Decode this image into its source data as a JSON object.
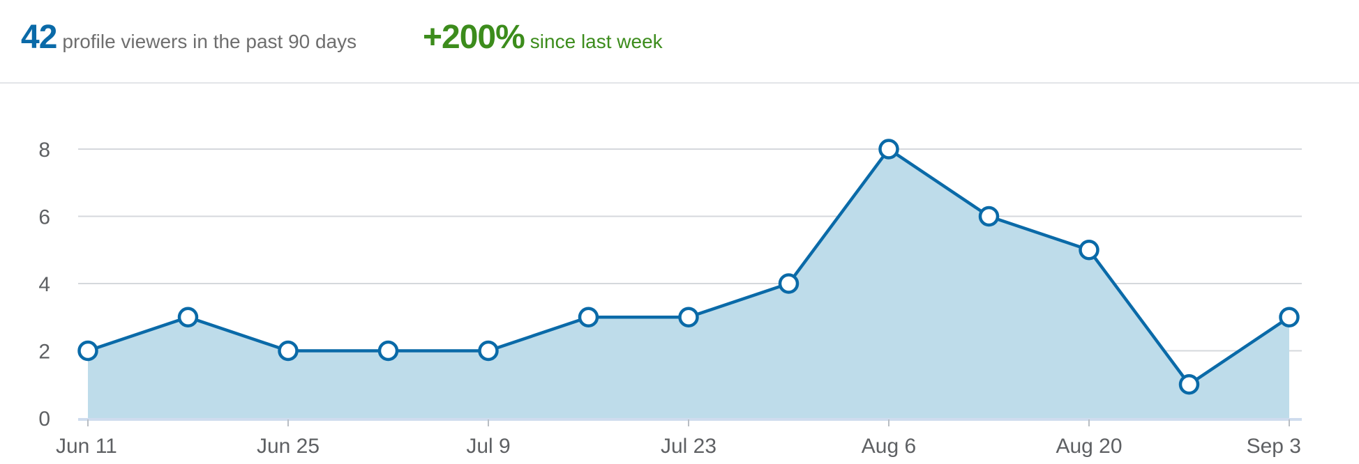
{
  "header": {
    "viewers_count": "42",
    "viewers_label": "profile viewers in the past 90 days",
    "change_value": "+200%",
    "change_label": "since last week"
  },
  "colors": {
    "accent": "#0a6aa8",
    "area_fill": "#bedcea",
    "positive": "#3c8c1c",
    "grid": "#d5d8dc",
    "tick_text": "#5e6063"
  },
  "chart_data": {
    "type": "area",
    "x": [
      "Jun 11",
      "Jun 18",
      "Jun 25",
      "Jul 2",
      "Jul 9",
      "Jul 16",
      "Jul 23",
      "Jul 30",
      "Aug 6",
      "Aug 13",
      "Aug 20",
      "Aug 27",
      "Sep 3"
    ],
    "values": [
      2,
      3,
      2,
      2,
      2,
      3,
      3,
      4,
      8,
      6,
      5,
      1,
      3
    ],
    "x_ticks": [
      "Jun 11",
      "Jun 25",
      "Jul 9",
      "Jul 23",
      "Aug 6",
      "Aug 20",
      "Sep 3"
    ],
    "y_ticks": [
      0,
      2,
      4,
      6,
      8
    ],
    "ylim": [
      0,
      8
    ],
    "grid": true,
    "markers": "hollow-circle",
    "title": "",
    "xlabel": "",
    "ylabel": ""
  }
}
